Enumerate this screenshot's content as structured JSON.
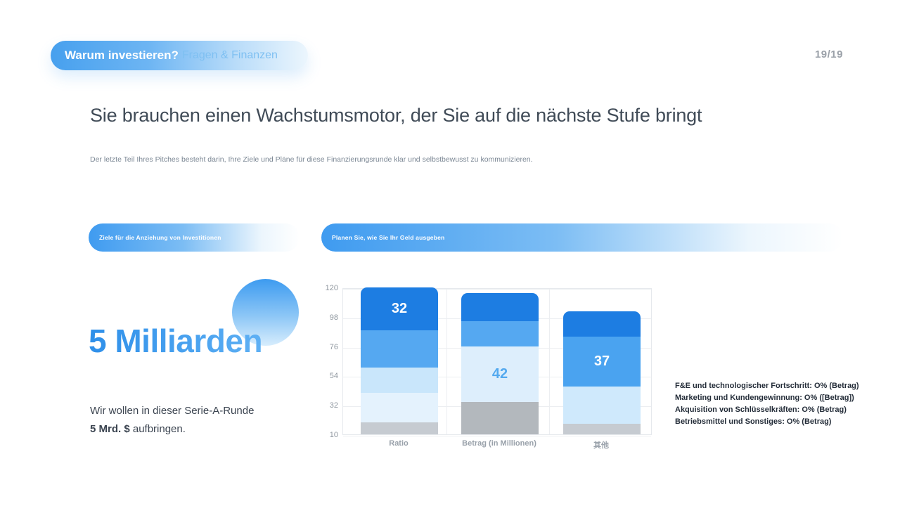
{
  "header": {
    "badge_title": "Warum investieren?",
    "badge_subtitle": "Fragen & Finanzen",
    "page_number": "19/19"
  },
  "main": {
    "title": "Sie brauchen einen Wachstumsmotor, der Sie auf die nächste Stufe bringt",
    "subtitle": "Der letzte Teil Ihres Pitches besteht darin, Ihre Ziele und Pläne für diese Finanzierungsrunde klar und selbstbewusst zu kommunizieren."
  },
  "goals_section": {
    "label": "Ziele für die Anziehung von Investitionen",
    "big_number": "5 Milliarden",
    "desc_line1": "Wir wollen in dieser Serie-A-Runde",
    "desc_bold": "5 Mrd. $",
    "desc_rest": " aufbringen."
  },
  "spending_section": {
    "label": "Planen Sie, wie Sie Ihr Geld ausgeben",
    "notes": [
      "F&E und technologischer Fortschritt: O% (Betrag)",
      "Marketing und Kundengewinnung: O% ([Betrag])",
      "Akquisition von Schlüsselkräften: O% (Betrag)",
      "Betriebsmittel und Sonstiges: O% (Betrag)"
    ]
  },
  "colors": {
    "accent_blue": "#3f9bf0",
    "dark_blue": "#1d7de2",
    "medium_blue": "#55a8f1",
    "light_blue": "#c9e6fb",
    "pale_blue": "#e2f1fd",
    "gray_segment": "#c6cbd1"
  },
  "chart_data": {
    "type": "bar",
    "stacked": true,
    "title": "",
    "xlabel": "",
    "ylabel": "",
    "grid": true,
    "legend": false,
    "categories": [
      "Ratio",
      "Betrag (in Millionen)",
      "其他"
    ],
    "y_ticks": [
      120,
      98,
      76,
      54,
      32,
      10
    ],
    "ylim": [
      10,
      120
    ],
    "bars": [
      {
        "category": "Ratio",
        "segments_bottom_to_top": [
          {
            "value": 9,
            "color": "#c6cbd1"
          },
          {
            "value": 22,
            "color": "#e4f2fd"
          },
          {
            "value": 19,
            "color": "#c9e6fb"
          },
          {
            "value": 28,
            "color": "#55a8f1"
          },
          {
            "value": 32,
            "color": "#1d7de2",
            "label": "32",
            "label_color": "#ffffff"
          }
        ]
      },
      {
        "category": "Betrag (in Millionen)",
        "segments_bottom_to_top": [
          {
            "value": 24,
            "color": "#b3b8bd"
          },
          {
            "value": 42,
            "color": "#ddeefc",
            "label": "42",
            "label_color": "#53a9ef"
          },
          {
            "value": 19,
            "color": "#55a8f1"
          },
          {
            "value": 21,
            "color": "#1d7de2"
          }
        ]
      },
      {
        "category": "其他",
        "segments_bottom_to_top": [
          {
            "value": 8,
            "color": "#c6cbd1"
          },
          {
            "value": 28,
            "color": "#cfe9fc"
          },
          {
            "value": 37,
            "color": "#4aa3f0",
            "label": "37",
            "label_color": "#ffffff"
          },
          {
            "value": 19,
            "color": "#1d7de2"
          }
        ]
      }
    ]
  }
}
